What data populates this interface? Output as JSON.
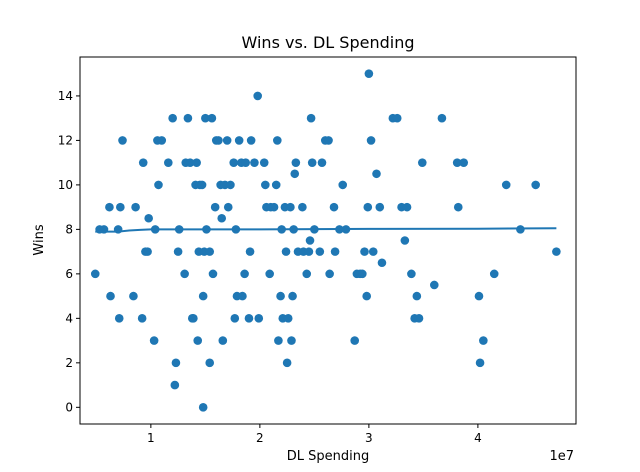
{
  "chart_data": {
    "type": "scatter",
    "title": "Wins vs. DL Spending",
    "xlabel": "DL Spending",
    "ylabel": "Wins",
    "x_offset_label": "1e7",
    "xlim": [
      3500000,
      49000000
    ],
    "ylim": [
      -0.75,
      15.75
    ],
    "x_ticks": [
      {
        "value": 10000000,
        "label": "1"
      },
      {
        "value": 20000000,
        "label": "2"
      },
      {
        "value": 30000000,
        "label": "3"
      },
      {
        "value": 40000000,
        "label": "4"
      }
    ],
    "y_ticks": [
      {
        "value": 0,
        "label": "0"
      },
      {
        "value": 2,
        "label": "2"
      },
      {
        "value": 4,
        "label": "4"
      },
      {
        "value": 6,
        "label": "6"
      },
      {
        "value": 8,
        "label": "8"
      },
      {
        "value": 10,
        "label": "10"
      },
      {
        "value": 12,
        "label": "12"
      },
      {
        "value": 14,
        "label": "14"
      }
    ],
    "grid": false,
    "colors": {
      "points": "#1f77b4",
      "trend": "#1f77b4",
      "axes": "#000000"
    },
    "series": [
      {
        "kind": "scatter",
        "points": [
          [
            4900000.0,
            6
          ],
          [
            5300000.0,
            8
          ],
          [
            5700000.0,
            8
          ],
          [
            6200000.0,
            9
          ],
          [
            6300000.0,
            5
          ],
          [
            7000000.0,
            8
          ],
          [
            7100000.0,
            4
          ],
          [
            7200000.0,
            9
          ],
          [
            7400000.0,
            12
          ],
          [
            8400000.0,
            5
          ],
          [
            8600000.0,
            9
          ],
          [
            9200000.0,
            4
          ],
          [
            9300000.0,
            11
          ],
          [
            9500000.0,
            7
          ],
          [
            9700000.0,
            7
          ],
          [
            9800000.0,
            8.5
          ],
          [
            10300000.0,
            3
          ],
          [
            10400000.0,
            8
          ],
          [
            10600000.0,
            12
          ],
          [
            10700000.0,
            10
          ],
          [
            11000000.0,
            12
          ],
          [
            11600000.0,
            11
          ],
          [
            12000000.0,
            13
          ],
          [
            12200000.0,
            1
          ],
          [
            12300000.0,
            2
          ],
          [
            12500000.0,
            7
          ],
          [
            12600000.0,
            8
          ],
          [
            13100000.0,
            6
          ],
          [
            13200000.0,
            11
          ],
          [
            13400000.0,
            13
          ],
          [
            13600000.0,
            11
          ],
          [
            13800000.0,
            4
          ],
          [
            13900000.0,
            4
          ],
          [
            14100000.0,
            10
          ],
          [
            14200000.0,
            11
          ],
          [
            14300000.0,
            3
          ],
          [
            14400000.0,
            7
          ],
          [
            14500000.0,
            10
          ],
          [
            14700000.0,
            10
          ],
          [
            14800000.0,
            5
          ],
          [
            14800000.0,
            0
          ],
          [
            14900000.0,
            7
          ],
          [
            15000000.0,
            13
          ],
          [
            15100000.0,
            8
          ],
          [
            15400000.0,
            7
          ],
          [
            15400000.0,
            2
          ],
          [
            15600000.0,
            13
          ],
          [
            15700000.0,
            6
          ],
          [
            15900000.0,
            9
          ],
          [
            16000000.0,
            12
          ],
          [
            16200000.0,
            12
          ],
          [
            16400000.0,
            10
          ],
          [
            16500000.0,
            8.5
          ],
          [
            16600000.0,
            3
          ],
          [
            16800000.0,
            10
          ],
          [
            17000000.0,
            12
          ],
          [
            17100000.0,
            9
          ],
          [
            17300000.0,
            10
          ],
          [
            17600000.0,
            11
          ],
          [
            17700000.0,
            4
          ],
          [
            17800000.0,
            8
          ],
          [
            17900000.0,
            5
          ],
          [
            18100000.0,
            12
          ],
          [
            18300000.0,
            11
          ],
          [
            18400000.0,
            5
          ],
          [
            18600000.0,
            6
          ],
          [
            18700000.0,
            11
          ],
          [
            19000000.0,
            4
          ],
          [
            19100000.0,
            7
          ],
          [
            19200000.0,
            12
          ],
          [
            19500000.0,
            11
          ],
          [
            19800000.0,
            14
          ],
          [
            19900000.0,
            4
          ],
          [
            20400000.0,
            11
          ],
          [
            20500000.0,
            10
          ],
          [
            20600000.0,
            9
          ],
          [
            20900000.0,
            6
          ],
          [
            21000000.0,
            9
          ],
          [
            21300000.0,
            9
          ],
          [
            21500000.0,
            10
          ],
          [
            21600000.0,
            12
          ],
          [
            21700000.0,
            3
          ],
          [
            21900000.0,
            5
          ],
          [
            22000000.0,
            8
          ],
          [
            22100000.0,
            4
          ],
          [
            22300000.0,
            9
          ],
          [
            22400000.0,
            7
          ],
          [
            22500000.0,
            2
          ],
          [
            22600000.0,
            4
          ],
          [
            22800000.0,
            9
          ],
          [
            22900000.0,
            3
          ],
          [
            23000000.0,
            5
          ],
          [
            23100000.0,
            8
          ],
          [
            23200000.0,
            10.5
          ],
          [
            23300000.0,
            11
          ],
          [
            23500000.0,
            7
          ],
          [
            23900000.0,
            9
          ],
          [
            24000000.0,
            7
          ],
          [
            24300000.0,
            6
          ],
          [
            24500000.0,
            7
          ],
          [
            24600000.0,
            7.5
          ],
          [
            24700000.0,
            13
          ],
          [
            24800000.0,
            11
          ],
          [
            25000000.0,
            8
          ],
          [
            25500000.0,
            7
          ],
          [
            25700000.0,
            11
          ],
          [
            26000000.0,
            12
          ],
          [
            26300000.0,
            12
          ],
          [
            26400000.0,
            6
          ],
          [
            26800000.0,
            9
          ],
          [
            26900000.0,
            7
          ],
          [
            27300000.0,
            8
          ],
          [
            27600000.0,
            10
          ],
          [
            27900000.0,
            8
          ],
          [
            28700000.0,
            3
          ],
          [
            28900000.0,
            6
          ],
          [
            29200000.0,
            6
          ],
          [
            29400000.0,
            6
          ],
          [
            29600000.0,
            7
          ],
          [
            29800000.0,
            5
          ],
          [
            29900000.0,
            9
          ],
          [
            30000000.0,
            15
          ],
          [
            30200000.0,
            12
          ],
          [
            30400000.0,
            7
          ],
          [
            30700000.0,
            10.5
          ],
          [
            31000000.0,
            9
          ],
          [
            31200000.0,
            6.5
          ],
          [
            32200000.0,
            13
          ],
          [
            32600000.0,
            13
          ],
          [
            33000000.0,
            9
          ],
          [
            33300000.0,
            7.5
          ],
          [
            33500000.0,
            9
          ],
          [
            33900000.0,
            6
          ],
          [
            34200000.0,
            4
          ],
          [
            34400000.0,
            5
          ],
          [
            34600000.0,
            4
          ],
          [
            34900000.0,
            11
          ],
          [
            36000000.0,
            5.5
          ],
          [
            36700000.0,
            13
          ],
          [
            38100000.0,
            11
          ],
          [
            38200000.0,
            9
          ],
          [
            38700000.0,
            11
          ],
          [
            40100000.0,
            5
          ],
          [
            40200000.0,
            2
          ],
          [
            40500000.0,
            3
          ],
          [
            41500000.0,
            6
          ],
          [
            42600000.0,
            10
          ],
          [
            43900000.0,
            8
          ],
          [
            45300000.0,
            10
          ],
          [
            47200000.0,
            7
          ]
        ]
      },
      {
        "kind": "line",
        "points": [
          [
            4900000.0,
            7.9
          ],
          [
            7000000.0,
            7.9
          ],
          [
            8000000.0,
            7.95
          ],
          [
            9000000.0,
            7.98
          ],
          [
            10000000.0,
            8.0
          ],
          [
            20000000.0,
            8.0
          ],
          [
            30000000.0,
            8.02
          ],
          [
            40000000.0,
            8.03
          ],
          [
            47200000.0,
            8.05
          ]
        ]
      }
    ]
  }
}
